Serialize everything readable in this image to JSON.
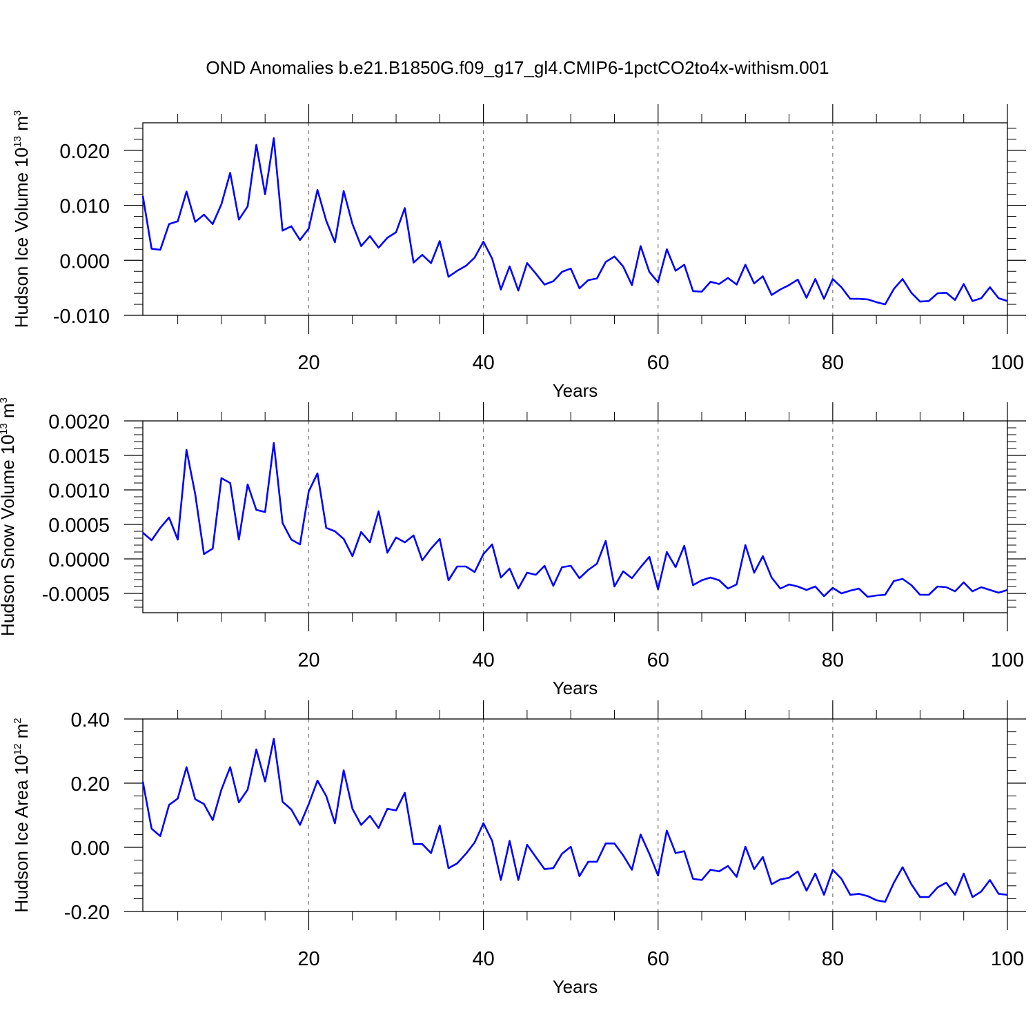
{
  "title": "OND Anomalies b.e21.B1850G.f09_g17_gl4.CMIP6-1pctCO2to4x-withism.001",
  "line_color": "#0000ff",
  "chart_data": [
    {
      "type": "line",
      "ylabel": "Hudson Ice Volume",
      "units": {
        "base": "10",
        "exp": "13",
        "unit": "m",
        "unit_exp": "3"
      },
      "xlabel": "Years",
      "xlim": [
        1,
        100
      ],
      "ylim": [
        -0.01,
        0.025
      ],
      "yticks": [
        -0.01,
        0.0,
        0.01,
        0.02
      ],
      "ytick_labels": [
        "-0.010",
        "0.000",
        "0.010",
        "0.020"
      ],
      "xticks": [
        20,
        40,
        60,
        80,
        100
      ],
      "xtick_labels": [
        "20",
        "40",
        "60",
        "80",
        "100"
      ],
      "vgrid": [
        20,
        40,
        60,
        80
      ],
      "x_start": 1,
      "values": [
        0.0117,
        0.0021,
        0.0019,
        0.0066,
        0.0071,
        0.0125,
        0.007,
        0.0083,
        0.0066,
        0.0102,
        0.0159,
        0.0074,
        0.0098,
        0.021,
        0.012,
        0.0222,
        0.0054,
        0.0062,
        0.0037,
        0.0058,
        0.0128,
        0.0072,
        0.0033,
        0.0126,
        0.0066,
        0.0026,
        0.0044,
        0.0023,
        0.0041,
        0.0051,
        0.0095,
        -0.0004,
        0.001,
        -0.0005,
        0.0035,
        -0.003,
        -0.0019,
        -0.001,
        0.0005,
        0.0034,
        0.0003,
        -0.0053,
        -0.0011,
        -0.0055,
        -0.0005,
        -0.0024,
        -0.0044,
        -0.0038,
        -0.0021,
        -0.0015,
        -0.0051,
        -0.0036,
        -0.0033,
        -0.0003,
        0.0007,
        -0.0011,
        -0.0045,
        0.0026,
        -0.0021,
        -0.004,
        0.002,
        -0.0019,
        -0.0008,
        -0.0056,
        -0.0057,
        -0.0039,
        -0.0043,
        -0.0032,
        -0.0044,
        -0.0008,
        -0.0042,
        -0.0029,
        -0.0063,
        -0.0053,
        -0.0045,
        -0.0035,
        -0.0068,
        -0.0034,
        -0.007,
        -0.0034,
        -0.0049,
        -0.007,
        -0.007,
        -0.0071,
        -0.0076,
        -0.008,
        -0.0052,
        -0.0034,
        -0.0059,
        -0.0075,
        -0.0074,
        -0.006,
        -0.0059,
        -0.0072,
        -0.0043,
        -0.0074,
        -0.0069,
        -0.0049,
        -0.0069,
        -0.0074
      ]
    },
    {
      "type": "line",
      "ylabel": "Hudson Snow Volume",
      "units": {
        "base": "10",
        "exp": "13",
        "unit": "m",
        "unit_exp": "3"
      },
      "xlabel": "Years",
      "xlim": [
        1,
        100
      ],
      "ylim": [
        -0.00078,
        0.002
      ],
      "yticks": [
        -0.0005,
        0.0,
        0.0005,
        0.001,
        0.0015,
        0.002
      ],
      "ytick_labels": [
        "-0.0005",
        "0.0000",
        "0.0005",
        "0.0010",
        "0.0015",
        "0.0020"
      ],
      "xticks": [
        20,
        40,
        60,
        80,
        100
      ],
      "xtick_labels": [
        "20",
        "40",
        "60",
        "80",
        "100"
      ],
      "vgrid": [
        20,
        40,
        60,
        80
      ],
      "x_start": 1,
      "values": [
        0.00038,
        0.00027,
        0.00045,
        0.0006,
        0.00028,
        0.00158,
        0.00094,
        7e-05,
        0.00015,
        0.00117,
        0.0011,
        0.00028,
        0.00108,
        0.00071,
        0.00068,
        0.00168,
        0.00052,
        0.00028,
        0.00021,
        0.00098,
        0.00124,
        0.00045,
        0.0004,
        0.00029,
        4e-05,
        0.00039,
        0.00024,
        0.00069,
        9e-05,
        0.00031,
        0.00024,
        0.00034,
        -2e-05,
        0.00015,
        0.00029,
        -0.00031,
        -0.00011,
        -0.00011,
        -0.00019,
        7e-05,
        0.00021,
        -0.00027,
        -0.00014,
        -0.00043,
        -0.0002,
        -0.00023,
        -0.0001,
        -0.00039,
        -0.00012,
        -0.0001,
        -0.00028,
        -0.00016,
        -7e-05,
        0.00026,
        -0.0004,
        -0.00018,
        -0.00028,
        -0.00012,
        3e-05,
        -0.00044,
        0.0001,
        -0.00012,
        0.00019,
        -0.00038,
        -0.00031,
        -0.00027,
        -0.00031,
        -0.00043,
        -0.00037,
        0.0002,
        -0.0002,
        4e-05,
        -0.00027,
        -0.00043,
        -0.00037,
        -0.0004,
        -0.00045,
        -0.0004,
        -0.00054,
        -0.00042,
        -0.0005,
        -0.00046,
        -0.00043,
        -0.00055,
        -0.00053,
        -0.00052,
        -0.00032,
        -0.00029,
        -0.00038,
        -0.00052,
        -0.00052,
        -0.0004,
        -0.00041,
        -0.00047,
        -0.00034,
        -0.00047,
        -0.00041,
        -0.00045,
        -0.00049,
        -0.00045
      ]
    },
    {
      "type": "line",
      "ylabel": "Hudson Ice Area",
      "units": {
        "base": "10",
        "exp": "12",
        "unit": "m",
        "unit_exp": "2"
      },
      "xlabel": "Years",
      "xlim": [
        1,
        100
      ],
      "ylim": [
        -0.2,
        0.4
      ],
      "yticks": [
        -0.2,
        0.0,
        0.2,
        0.4
      ],
      "ytick_labels": [
        "-0.20",
        "0.00",
        "0.20",
        "0.40"
      ],
      "xticks": [
        20,
        40,
        60,
        80,
        100
      ],
      "xtick_labels": [
        "20",
        "40",
        "60",
        "80",
        "100"
      ],
      "vgrid": [
        20,
        40,
        60,
        80
      ],
      "x_start": 1,
      "values": [
        0.205,
        0.058,
        0.035,
        0.132,
        0.152,
        0.25,
        0.15,
        0.135,
        0.085,
        0.18,
        0.25,
        0.14,
        0.18,
        0.305,
        0.205,
        0.338,
        0.142,
        0.118,
        0.07,
        0.135,
        0.208,
        0.16,
        0.075,
        0.24,
        0.12,
        0.07,
        0.098,
        0.06,
        0.12,
        0.115,
        0.17,
        0.01,
        0.01,
        -0.018,
        0.068,
        -0.065,
        -0.05,
        -0.02,
        0.015,
        0.075,
        0.02,
        -0.102,
        0.02,
        -0.102,
        0.008,
        -0.03,
        -0.068,
        -0.065,
        -0.02,
        0.002,
        -0.09,
        -0.045,
        -0.045,
        0.012,
        0.012,
        -0.025,
        -0.07,
        0.04,
        -0.02,
        -0.088,
        0.052,
        -0.018,
        -0.012,
        -0.098,
        -0.102,
        -0.07,
        -0.075,
        -0.058,
        -0.092,
        0.002,
        -0.068,
        -0.03,
        -0.115,
        -0.1,
        -0.095,
        -0.075,
        -0.135,
        -0.082,
        -0.148,
        -0.07,
        -0.098,
        -0.148,
        -0.145,
        -0.152,
        -0.165,
        -0.17,
        -0.11,
        -0.062,
        -0.115,
        -0.155,
        -0.155,
        -0.125,
        -0.11,
        -0.148,
        -0.082,
        -0.155,
        -0.138,
        -0.102,
        -0.145,
        -0.148
      ]
    }
  ]
}
